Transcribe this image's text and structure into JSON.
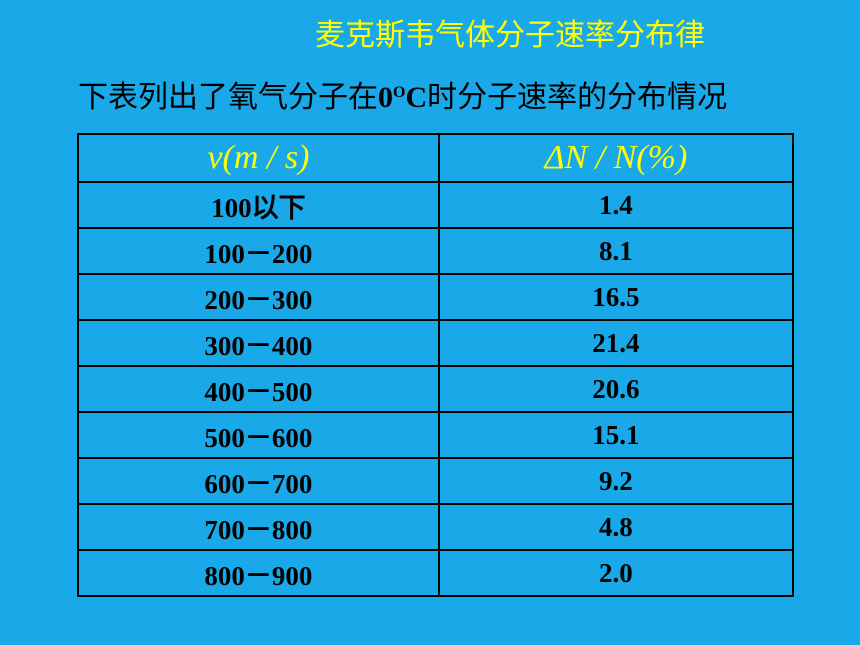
{
  "title": "麦克斯韦气体分子速率分布律",
  "subtitle": {
    "before": "下表列出了氧气分子在",
    "zero": "0",
    "degree": "O",
    "celsius": "C",
    "after": "时分子速率的分布情况"
  },
  "table": {
    "headers": [
      "v(m / s)",
      "ΔN / N(%)"
    ],
    "rows": [
      [
        "100以下",
        "1.4"
      ],
      [
        "100－200",
        "8.1"
      ],
      [
        "200－300",
        "16.5"
      ],
      [
        "300－400",
        "21.4"
      ],
      [
        "400－500",
        "20.6"
      ],
      [
        "500－600",
        "15.1"
      ],
      [
        "600－700",
        "9.2"
      ],
      [
        "700－800",
        "4.8"
      ],
      [
        "800－900",
        "2.0"
      ]
    ]
  }
}
